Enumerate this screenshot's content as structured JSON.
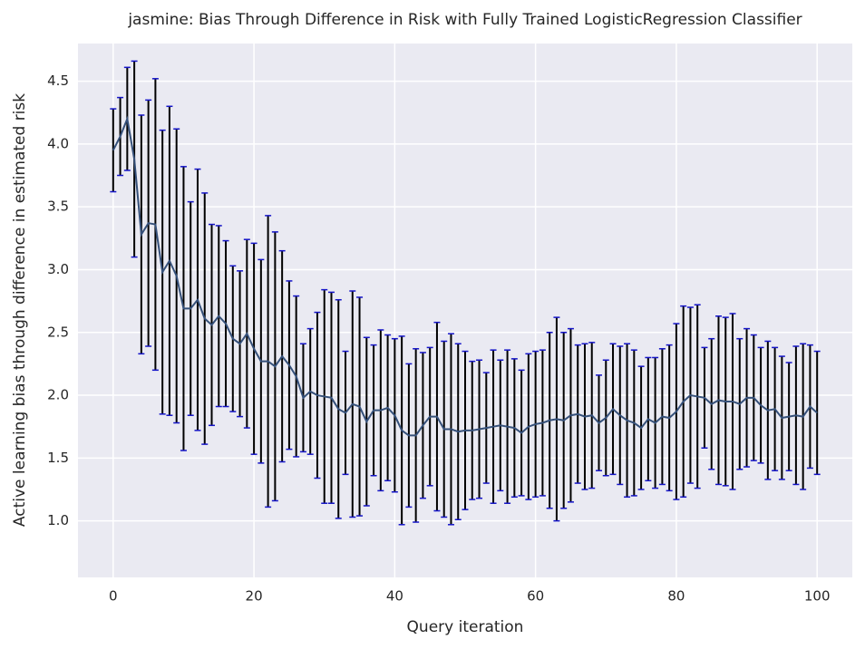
{
  "chart_data": {
    "type": "errorbar",
    "title": "jasmine: Bias Through Difference in Risk with Fully Trained LogisticRegression Classifier",
    "xlabel": "Query iteration",
    "ylabel": "Active learning bias through difference in estimated risk",
    "x": [
      0,
      1,
      2,
      3,
      4,
      5,
      6,
      7,
      8,
      9,
      10,
      11,
      12,
      13,
      14,
      15,
      16,
      17,
      18,
      19,
      20,
      21,
      22,
      23,
      24,
      25,
      26,
      27,
      28,
      29,
      30,
      31,
      32,
      33,
      34,
      35,
      36,
      37,
      38,
      39,
      40,
      41,
      42,
      43,
      44,
      45,
      46,
      47,
      48,
      49,
      50,
      51,
      52,
      53,
      54,
      55,
      56,
      57,
      58,
      59,
      60,
      61,
      62,
      63,
      64,
      65,
      66,
      67,
      68,
      69,
      70,
      71,
      72,
      73,
      74,
      75,
      76,
      77,
      78,
      79,
      80,
      81,
      82,
      83,
      84,
      85,
      86,
      87,
      88,
      89,
      90,
      91,
      92,
      93,
      94,
      95,
      96,
      97,
      98,
      99,
      100
    ],
    "series": [
      {
        "color": "#35507a",
        "error_color": "#000000",
        "cap_color": "#1414c8",
        "values": [
          3.95,
          4.06,
          4.2,
          3.88,
          3.28,
          3.37,
          3.36,
          2.98,
          3.07,
          2.95,
          2.69,
          2.69,
          2.76,
          2.61,
          2.56,
          2.63,
          2.57,
          2.45,
          2.41,
          2.49,
          2.37,
          2.27,
          2.27,
          2.23,
          2.31,
          2.24,
          2.15,
          1.98,
          2.03,
          2.0,
          1.99,
          1.98,
          1.89,
          1.86,
          1.93,
          1.91,
          1.79,
          1.88,
          1.88,
          1.9,
          1.84,
          1.72,
          1.68,
          1.68,
          1.76,
          1.83,
          1.83,
          1.73,
          1.73,
          1.71,
          1.72,
          1.72,
          1.73,
          1.74,
          1.75,
          1.76,
          1.75,
          1.74,
          1.7,
          1.75,
          1.77,
          1.78,
          1.8,
          1.81,
          1.8,
          1.84,
          1.85,
          1.83,
          1.84,
          1.78,
          1.82,
          1.89,
          1.84,
          1.8,
          1.78,
          1.74,
          1.81,
          1.78,
          1.83,
          1.82,
          1.87,
          1.95,
          2.0,
          1.99,
          1.98,
          1.93,
          1.96,
          1.95,
          1.95,
          1.93,
          1.98,
          1.98,
          1.92,
          1.88,
          1.89,
          1.82,
          1.83,
          1.84,
          1.83,
          1.91,
          1.86
        ],
        "errors": [
          0.33,
          0.31,
          0.41,
          0.78,
          0.95,
          0.98,
          1.16,
          1.13,
          1.23,
          1.17,
          1.13,
          0.85,
          1.04,
          1.0,
          0.8,
          0.72,
          0.66,
          0.58,
          0.58,
          0.75,
          0.84,
          0.81,
          1.16,
          1.07,
          0.84,
          0.67,
          0.64,
          0.43,
          0.5,
          0.66,
          0.85,
          0.84,
          0.87,
          0.49,
          0.9,
          0.87,
          0.67,
          0.52,
          0.64,
          0.58,
          0.61,
          0.75,
          0.57,
          0.69,
          0.58,
          0.55,
          0.75,
          0.7,
          0.76,
          0.7,
          0.63,
          0.55,
          0.55,
          0.44,
          0.61,
          0.52,
          0.61,
          0.55,
          0.5,
          0.58,
          0.58,
          0.58,
          0.7,
          0.81,
          0.7,
          0.69,
          0.55,
          0.58,
          0.58,
          0.38,
          0.46,
          0.52,
          0.55,
          0.61,
          0.58,
          0.49,
          0.49,
          0.52,
          0.54,
          0.58,
          0.7,
          0.76,
          0.7,
          0.73,
          0.4,
          0.52,
          0.67,
          0.67,
          0.7,
          0.52,
          0.55,
          0.5,
          0.46,
          0.55,
          0.49,
          0.49,
          0.43,
          0.55,
          0.58,
          0.49,
          0.49
        ]
      }
    ],
    "xlim": [
      -5,
      105
    ],
    "xticks": [
      0,
      20,
      40,
      60,
      80,
      100
    ],
    "ylim": [
      0.55,
      4.8
    ],
    "yticks": [
      {
        "value": 1,
        "label": "1.0"
      },
      1.5,
      {
        "value": 2,
        "label": "2.0"
      },
      2.5,
      {
        "value": 3,
        "label": "3.0"
      },
      3.5,
      {
        "value": 4,
        "label": "4.0"
      },
      4.5
    ],
    "grid": true,
    "background": "#eaeaf2"
  }
}
